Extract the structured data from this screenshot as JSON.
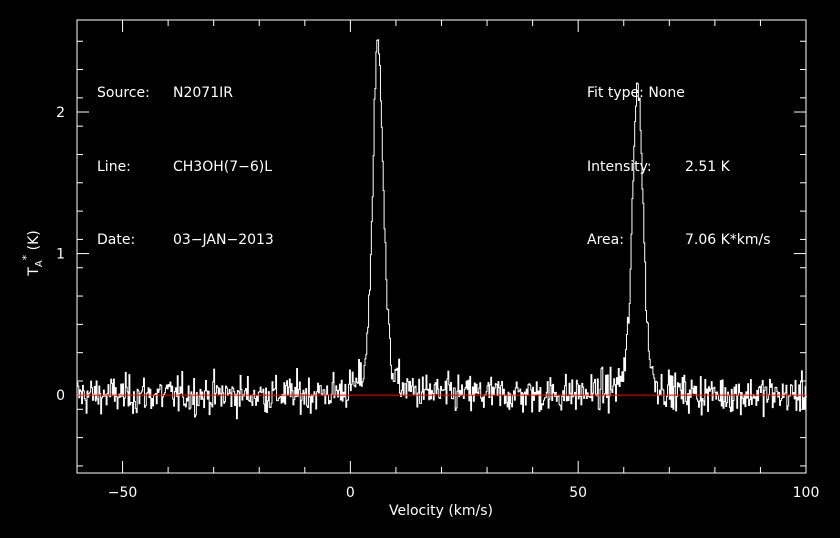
{
  "chart_data": {
    "type": "line",
    "xlabel": "Velocity (km/s)",
    "ylabel": "T_A* (K)",
    "xlim": [
      -60,
      100
    ],
    "ylim": [
      -0.55,
      2.65
    ],
    "x_ticks": [
      -50,
      0,
      50,
      100
    ],
    "y_ticks": [
      0,
      1,
      2
    ],
    "x_tick_labels": [
      "−50",
      "0",
      "50",
      "100"
    ],
    "y_tick_labels": [
      "0",
      "1",
      "2"
    ],
    "grid": false,
    "baseline": 0,
    "series": [
      {
        "color": "#ffffff",
        "baseline_noise_k": 0.12,
        "peaks": [
          {
            "x": 6.0,
            "y": 2.51
          },
          {
            "x": 63.0,
            "y": 2.2
          }
        ]
      }
    ]
  },
  "info": {
    "source_label": "Source:",
    "source_value": "N2071IR",
    "line_label": "Line:",
    "line_value": "CH3OH(7−6)L",
    "date_label": "Date:",
    "date_value": "03−JAN−2013",
    "fit_label": "Fit type:",
    "fit_value": "None",
    "intensity_label": "Intensity:",
    "intensity_value": "2.51 K",
    "area_label": "Area:",
    "area_value": "7.06 K*km/s"
  },
  "colors": {
    "background": "#000000",
    "trace": "#ffffff",
    "baseline": "#ff0000",
    "axes": "#ffffff"
  }
}
